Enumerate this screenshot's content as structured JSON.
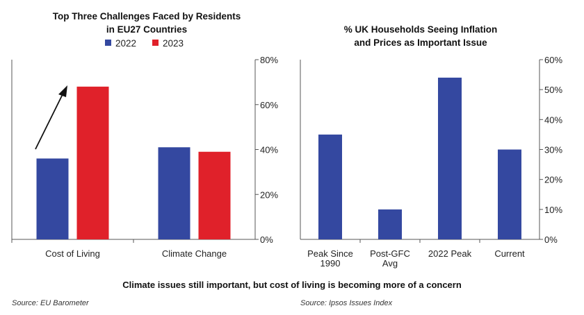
{
  "chart_data": [
    {
      "type": "bar",
      "title_lines": [
        "Top Three Challenges Faced by Residents",
        "in EU27 Countries"
      ],
      "categories": [
        "Cost of Living",
        "Climate Change"
      ],
      "series": [
        {
          "name": "2022",
          "values": [
            36,
            41
          ],
          "color": "#3448a0"
        },
        {
          "name": "2023",
          "values": [
            68,
            39
          ],
          "color": "#e0212a"
        }
      ],
      "ylim": [
        0,
        80
      ],
      "ytick_labels": [
        "0%",
        "20%",
        "40%",
        "60%",
        "80%"
      ],
      "legend_position": "top-center",
      "annotation": "upward arrow from the 2022 bar to the 2023 bar for Cost of Living",
      "source": "Source: EU Barometer"
    },
    {
      "type": "bar",
      "title_lines": [
        "% UK Households Seeing Inflation",
        "and Prices as Important Issue"
      ],
      "categories": [
        [
          "Peak Since",
          "1990"
        ],
        [
          "Post-GFC",
          "Avg"
        ],
        [
          "2022 Peak"
        ],
        [
          "Current"
        ]
      ],
      "series": [
        {
          "name": "",
          "values": [
            35,
            10,
            54,
            30
          ],
          "color": "#3448a0"
        }
      ],
      "ylim": [
        0,
        60
      ],
      "ytick_labels": [
        "0%",
        "10%",
        "20%",
        "30%",
        "40%",
        "50%",
        "60%"
      ],
      "source": "Source: Ipsos Issues Index"
    }
  ],
  "footer": "Climate issues still important, but cost of living is becoming more of a concern"
}
